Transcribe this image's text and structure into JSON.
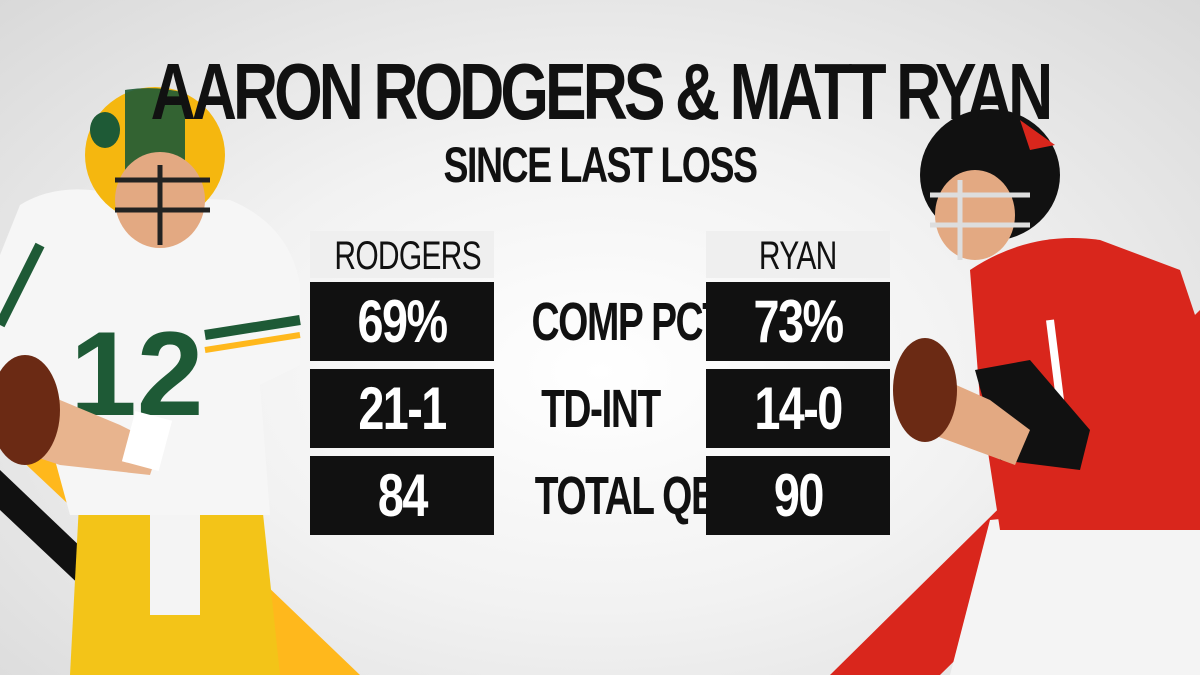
{
  "graphic": {
    "title": "AARON RODGERS & MATT RYAN",
    "subtitle": "SINCE LAST LOSS"
  },
  "players": [
    {
      "header": "RODGERS",
      "jersey_number": "12",
      "team_colors": {
        "primary": "#1e5a36",
        "secondary": "#ffb81c"
      }
    },
    {
      "header": "RYAN",
      "team_colors": {
        "primary": "#d9261c",
        "secondary": "#111111"
      }
    }
  ],
  "stats": [
    {
      "label": "COMP PCT",
      "rodgers": "69%",
      "ryan": "73%"
    },
    {
      "label": "TD-INT",
      "rodgers": "21-1",
      "ryan": "14-0"
    },
    {
      "label": "TOTAL QBR",
      "rodgers": "84",
      "ryan": "90"
    }
  ],
  "colors": {
    "cell_background": "#111111",
    "header_background": "#efefef",
    "text": "#111111"
  }
}
